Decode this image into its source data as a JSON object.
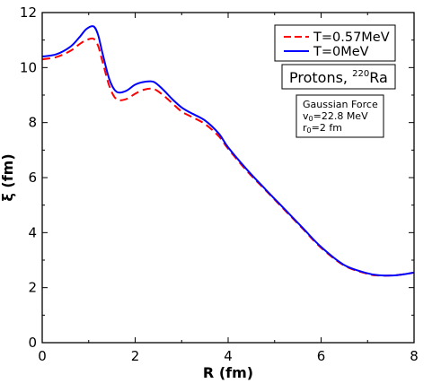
{
  "chart_data": {
    "type": "line",
    "xlabel": "R (fm)",
    "ylabel": "ξ (fm)",
    "xlim": [
      0,
      8
    ],
    "ylim": [
      0,
      12
    ],
    "x_ticks": [
      "0",
      "2",
      "4",
      "6",
      "8"
    ],
    "y_ticks": [
      "0",
      "2",
      "4",
      "6",
      "8",
      "10",
      "12"
    ],
    "grid": false,
    "legend_position": "top-right",
    "series": [
      {
        "name": "T=0.57MeV",
        "color": "#ff0000",
        "style": "dashed",
        "x": [
          0,
          0.3,
          0.6,
          0.8,
          0.95,
          1.1,
          1.2,
          1.3,
          1.45,
          1.6,
          1.8,
          2.0,
          2.2,
          2.4,
          2.6,
          2.8,
          3.0,
          3.2,
          3.5,
          3.8,
          4.0,
          4.4,
          4.8,
          5.2,
          5.6,
          6.0,
          6.5,
          7.0,
          7.25,
          7.5,
          7.75,
          8.0
        ],
        "y": [
          10.3,
          10.38,
          10.6,
          10.85,
          11.0,
          11.05,
          10.8,
          10.2,
          9.3,
          8.85,
          8.85,
          9.05,
          9.2,
          9.22,
          9.0,
          8.7,
          8.4,
          8.22,
          7.95,
          7.5,
          7.05,
          6.25,
          5.55,
          4.85,
          4.15,
          3.45,
          2.8,
          2.5,
          2.44,
          2.44,
          2.48,
          2.55
        ]
      },
      {
        "name": "T=0MeV",
        "color": "#0000ff",
        "style": "solid",
        "x": [
          0,
          0.3,
          0.6,
          0.8,
          0.95,
          1.1,
          1.2,
          1.3,
          1.45,
          1.6,
          1.8,
          2.0,
          2.2,
          2.4,
          2.6,
          2.8,
          3.0,
          3.2,
          3.5,
          3.8,
          4.0,
          4.4,
          4.8,
          5.2,
          5.6,
          6.0,
          6.5,
          7.0,
          7.25,
          7.5,
          7.75,
          8.0
        ],
        "y": [
          10.4,
          10.48,
          10.75,
          11.1,
          11.4,
          11.5,
          11.2,
          10.5,
          9.55,
          9.12,
          9.15,
          9.38,
          9.48,
          9.48,
          9.2,
          8.85,
          8.55,
          8.35,
          8.08,
          7.6,
          7.1,
          6.3,
          5.58,
          4.88,
          4.18,
          3.48,
          2.82,
          2.52,
          2.45,
          2.44,
          2.48,
          2.55
        ]
      }
    ],
    "annotations": {
      "nucleus_box": {
        "text": "Protons, ",
        "mass": "220",
        "element": "Ra"
      },
      "force_box": {
        "title": "Gaussian Force",
        "v_sym": "v",
        "v_sub": "0",
        "v_val": "=22.8 MeV",
        "r_sym": "r",
        "r_sub": "0",
        "r_val": "=2 fm"
      }
    }
  }
}
